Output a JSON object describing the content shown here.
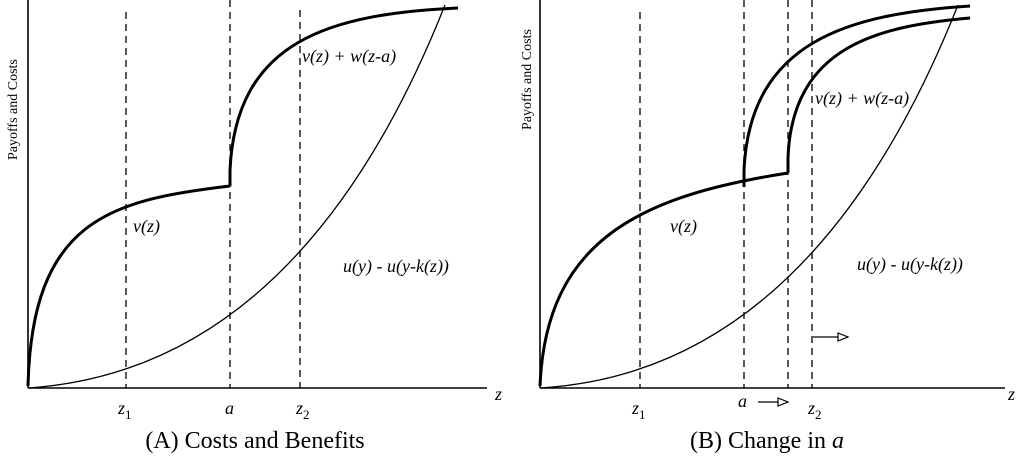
{
  "panel_a": {
    "caption_prefix": "(A)",
    "caption_text": "Costs and Benefits",
    "y_axis_title": "Payoffs and Costs",
    "x_axis_var": "z",
    "curve_benefit_low": "v(z)",
    "curve_benefit_high": "v(z) + w(z-a)",
    "curve_cost": "u(y) - u(y-k(z))",
    "marker_z1_base": "z",
    "marker_z1_sub": "1",
    "marker_a": "a",
    "marker_z2_base": "z",
    "marker_z2_sub": "2"
  },
  "panel_b": {
    "caption_prefix": "(B)",
    "caption_text": "Change in",
    "caption_var": "a",
    "y_axis_title": "Payoffs and Costs",
    "x_axis_var": "z",
    "curve_benefit_low": "v(z)",
    "curve_benefit_high": "v(z) + w(z-a)",
    "curve_cost": "u(y) - u(y-k(z))",
    "marker_z1_base": "z",
    "marker_z1_sub": "1",
    "marker_a": "a",
    "marker_z2_base": "z",
    "marker_z2_sub": "2"
  }
}
